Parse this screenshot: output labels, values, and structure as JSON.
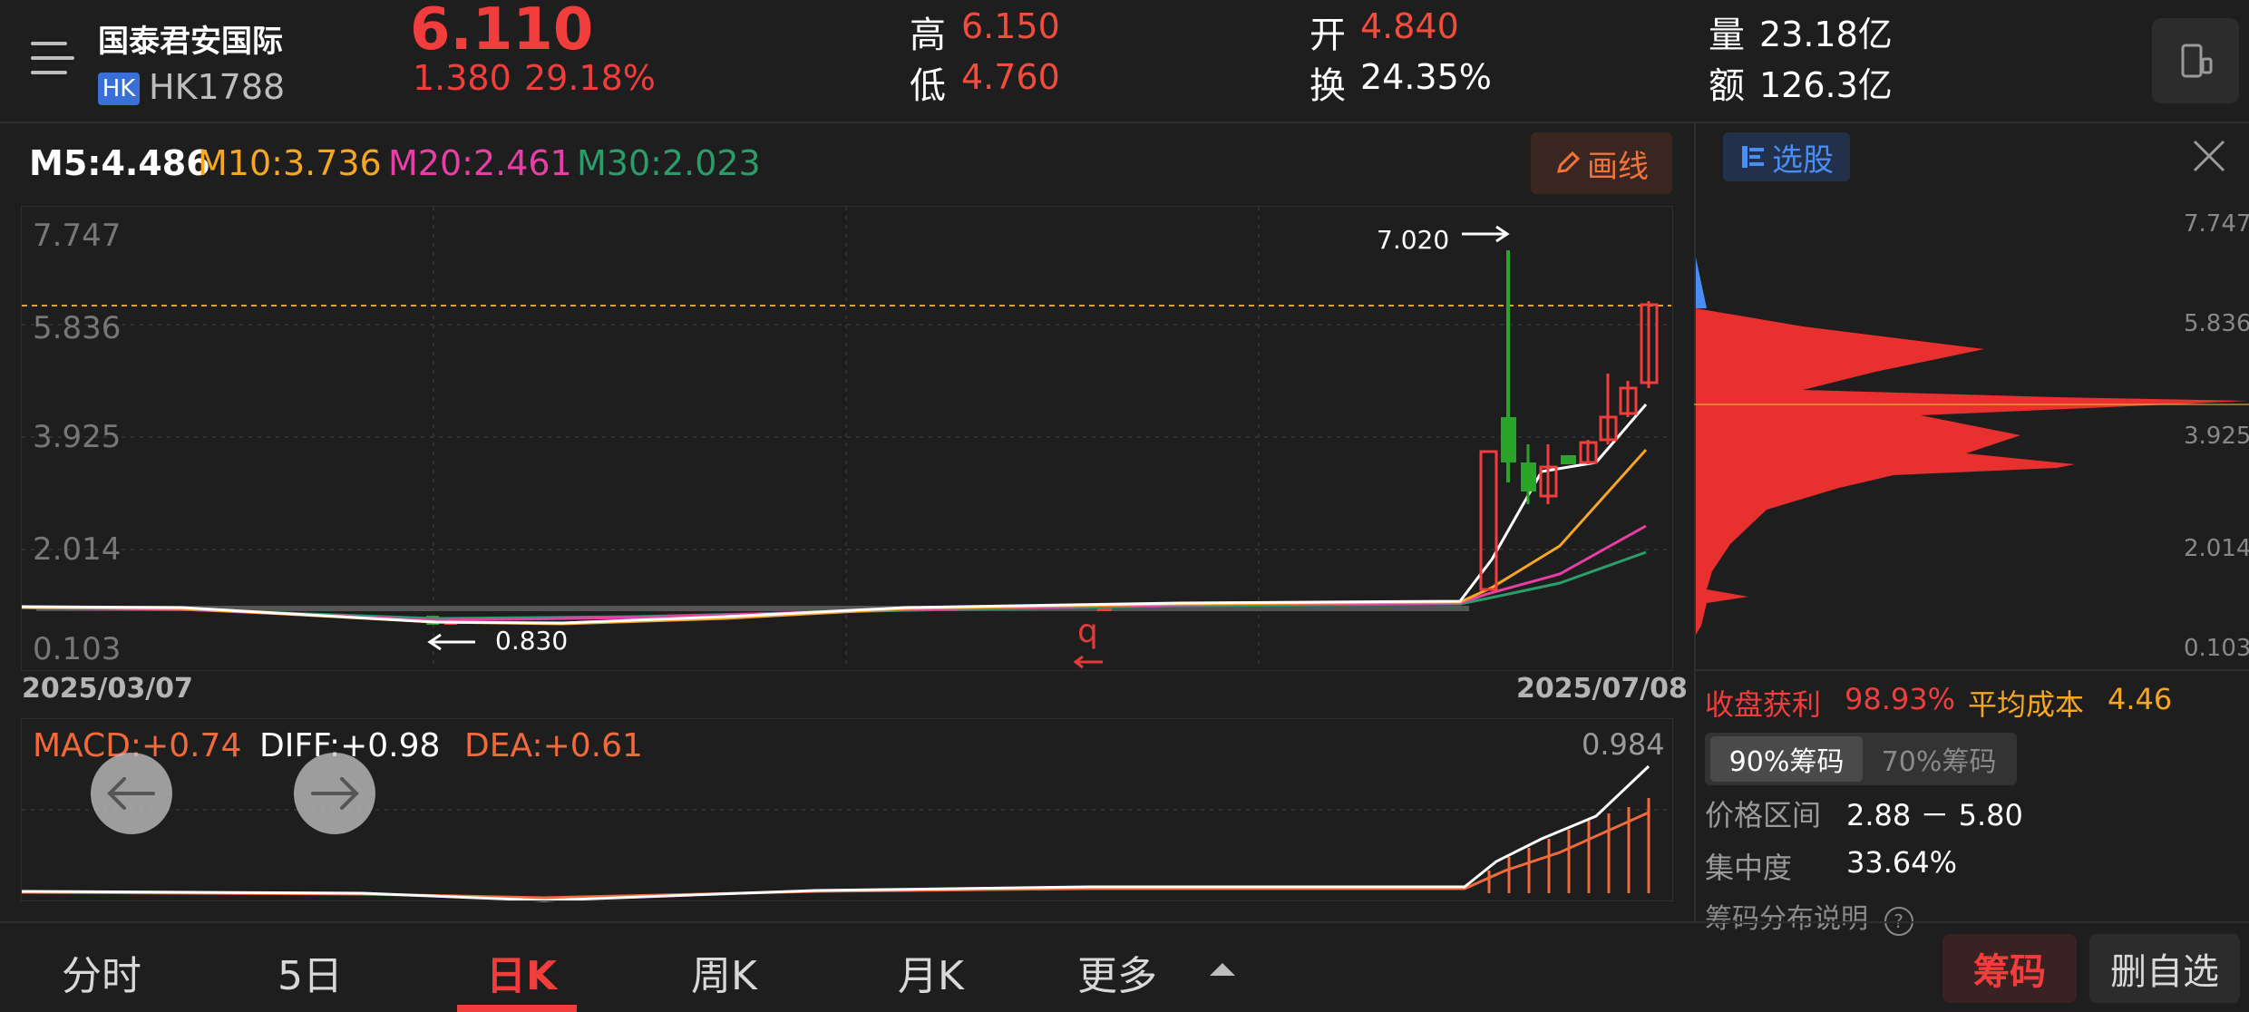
{
  "stock": {
    "name": "国泰君安国际",
    "market_badge": "HK",
    "code": "HK1788",
    "price": "6.110",
    "change": "1.380",
    "change_pct": "29.18%"
  },
  "quote": {
    "high_label": "高",
    "high": "6.150",
    "low_label": "低",
    "low": "4.760",
    "open_label": "开",
    "open": "4.840",
    "turnover_label": "换",
    "turnover": "24.35%",
    "volume_label": "量",
    "volume": "23.18亿",
    "amount_label": "额",
    "amount": "126.3亿"
  },
  "ma": {
    "m5": "M5:4.486",
    "m10": "M10:3.736",
    "m20": "M20:2.461",
    "m30": "M30:2.023"
  },
  "draw_button": "画线",
  "chart": {
    "y_ticks": [
      "7.747",
      "5.836",
      "3.925",
      "2.014",
      "0.103"
    ],
    "date_start": "2025/03/07",
    "date_end": "2025/07/08",
    "high_annotation": "7.020",
    "low_annotation": "0.830",
    "marker_q": "q"
  },
  "macd": {
    "macd": "MACD:+0.74",
    "diff": "DIFF:+0.98",
    "dea": "DEA:+0.61",
    "max": "0.984"
  },
  "chip": {
    "select_stock": "选股",
    "y_ticks": [
      "7.747",
      "5.836",
      "3.925",
      "2.014",
      "0.103"
    ],
    "profit_label": "收盘获利",
    "profit": "98.93%",
    "avg_cost_label": "平均成本",
    "avg_cost": "4.46",
    "tab_90": "90%筹码",
    "tab_70": "70%筹码",
    "range_label": "价格区间",
    "range": "2.88 － 5.80",
    "concentration_label": "集中度",
    "concentration": "33.64%",
    "help": "筹码分布说明"
  },
  "tabs": {
    "intraday": "分时",
    "five_day": "5日",
    "daily_k": "日K",
    "weekly_k": "周K",
    "monthly_k": "月K",
    "more": "更多"
  },
  "buttons": {
    "chips": "筹码",
    "remove_watch": "删自选"
  },
  "colors": {
    "up": "#f23d3d",
    "down": "#2aa52a",
    "m5": "#ffffff",
    "m10": "#f5a623",
    "m20": "#e83fa6",
    "m30": "#2a9d6a",
    "macd": "#f06a3c"
  }
}
